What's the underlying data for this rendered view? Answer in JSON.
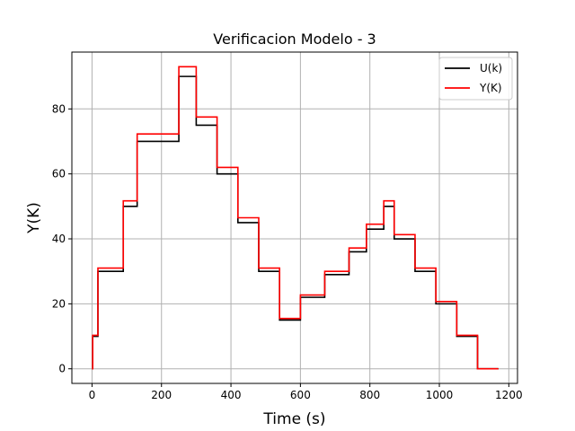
{
  "chart_data": {
    "type": "line",
    "title": "Verificacion Modelo - 3",
    "xlabel": "Time (s)",
    "ylabel": "Y(K)",
    "xlim": [
      -58,
      1225
    ],
    "ylim": [
      -4.5,
      97.5
    ],
    "xticks": [
      0,
      200,
      400,
      600,
      800,
      1000,
      1200
    ],
    "yticks": [
      0,
      20,
      40,
      60,
      80
    ],
    "grid": true,
    "legend_position": "upper right",
    "series": [
      {
        "name": "U(k)",
        "color": "#000000",
        "step": true,
        "x": [
          0,
          2,
          17,
          90,
          130,
          250,
          300,
          360,
          420,
          480,
          540,
          600,
          670,
          740,
          790,
          840,
          870,
          930,
          990,
          1050,
          1110,
          1170
        ],
        "y": [
          0,
          10,
          30,
          50,
          70,
          90,
          75,
          60,
          45,
          30,
          15,
          22,
          29,
          36,
          43,
          50,
          40,
          30,
          20,
          10,
          0,
          0
        ]
      },
      {
        "name": "Y(K)",
        "color": "#ff0000",
        "step": true,
        "x": [
          0,
          2,
          17,
          90,
          130,
          250,
          300,
          360,
          420,
          480,
          540,
          600,
          670,
          740,
          790,
          840,
          870,
          930,
          990,
          1050,
          1110,
          1170
        ],
        "y": [
          0,
          10.3,
          31,
          51.7,
          72.3,
          93,
          77.5,
          62,
          46.5,
          31,
          15.5,
          22.7,
          30,
          37.2,
          44.5,
          51.7,
          41.3,
          31,
          20.7,
          10.3,
          0,
          0
        ]
      }
    ]
  }
}
